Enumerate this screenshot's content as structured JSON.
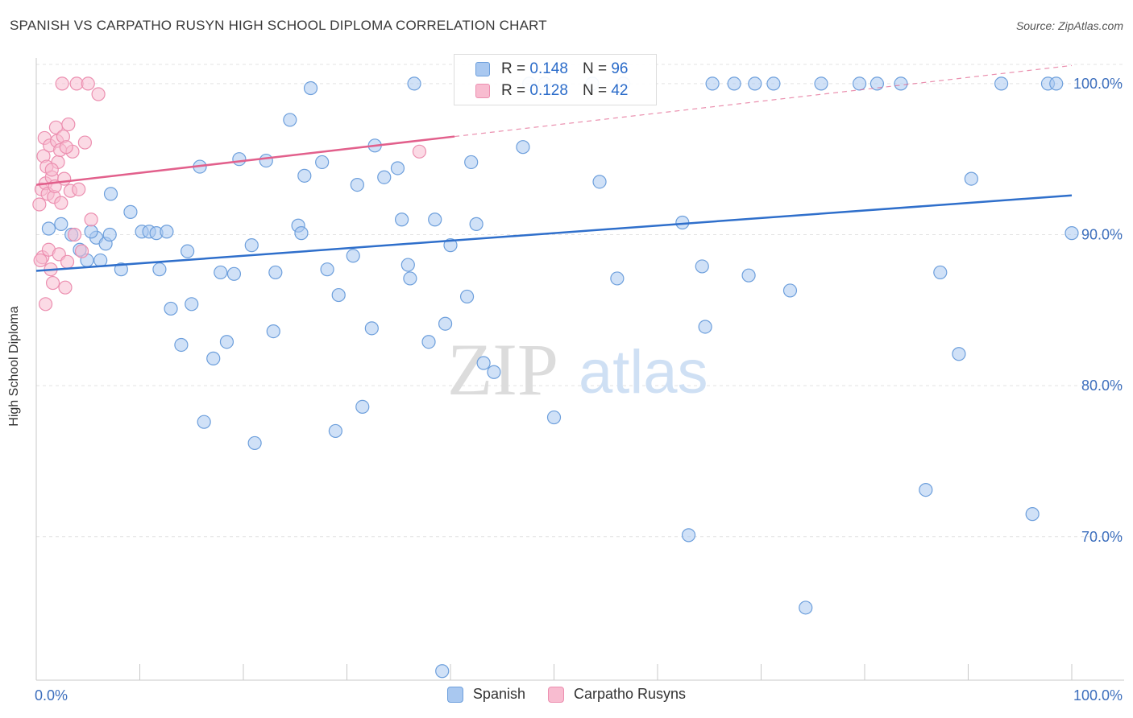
{
  "title": "SPANISH VS CARPATHO RUSYN HIGH SCHOOL DIPLOMA CORRELATION CHART",
  "source": "Source: ZipAtlas.com",
  "chart_data": {
    "type": "scatter",
    "title": "SPANISH VS CARPATHO RUSYN HIGH SCHOOL DIPLOMA CORRELATION CHART",
    "xlabel": "",
    "ylabel": "High School Diploma",
    "xlim": [
      0,
      100
    ],
    "ylim": [
      60.5,
      101.7
    ],
    "x_tick_labels": [
      "0.0%",
      "100.0%"
    ],
    "y_ticks": [
      70,
      80,
      90,
      100
    ],
    "y_tick_labels": [
      "70.0%",
      "80.0%",
      "90.0%",
      "100.0%"
    ],
    "grid": true,
    "watermark": {
      "part1": "ZIP",
      "part2": "atlas"
    },
    "legend": {
      "r_label": "R =",
      "n_label": "N =",
      "entries": [
        {
          "name": "Spanish",
          "r": "0.148",
          "n": "96"
        },
        {
          "name": "Carpatho Rusyns",
          "r": "0.128",
          "n": "42"
        }
      ]
    },
    "colors": {
      "spanish_fill": "#a9c8f0",
      "spanish_stroke": "#6d9fdc",
      "spanish_line": "#2f6fcb",
      "rusyn_fill": "#f8bcd0",
      "rusyn_stroke": "#ec8fb0",
      "rusyn_line": "#e2608c",
      "grid": "#e3e3e3",
      "tick_label": "#3d6fbd"
    },
    "series": [
      {
        "name": "Spanish",
        "trend": {
          "x": [
            0,
            100
          ],
          "y": [
            87.6,
            92.6
          ]
        },
        "points": [
          [
            1.2,
            90.4
          ],
          [
            2.4,
            90.7
          ],
          [
            3.4,
            90.0
          ],
          [
            4.2,
            89.0
          ],
          [
            4.9,
            88.3
          ],
          [
            6.2,
            88.3
          ],
          [
            5.8,
            89.8
          ],
          [
            5.3,
            90.2
          ],
          [
            6.7,
            89.4
          ],
          [
            7.1,
            90.0
          ],
          [
            7.2,
            92.7
          ],
          [
            8.2,
            87.7
          ],
          [
            9.1,
            91.5
          ],
          [
            10.2,
            90.2
          ],
          [
            10.9,
            90.2
          ],
          [
            11.6,
            90.1
          ],
          [
            11.9,
            87.7
          ],
          [
            12.6,
            90.2
          ],
          [
            13.0,
            85.1
          ],
          [
            14.0,
            82.7
          ],
          [
            14.6,
            88.9
          ],
          [
            15.0,
            85.4
          ],
          [
            15.8,
            94.5
          ],
          [
            16.2,
            77.6
          ],
          [
            17.1,
            81.8
          ],
          [
            17.8,
            87.5
          ],
          [
            18.4,
            82.9
          ],
          [
            19.1,
            87.4
          ],
          [
            19.6,
            95.0
          ],
          [
            20.8,
            89.3
          ],
          [
            21.1,
            76.2
          ],
          [
            22.2,
            94.9
          ],
          [
            22.9,
            83.6
          ],
          [
            23.1,
            87.5
          ],
          [
            24.5,
            97.6
          ],
          [
            25.3,
            90.6
          ],
          [
            25.6,
            90.1
          ],
          [
            25.9,
            93.9
          ],
          [
            26.5,
            99.7
          ],
          [
            27.6,
            94.8
          ],
          [
            28.1,
            87.7
          ],
          [
            28.9,
            77.0
          ],
          [
            29.2,
            86.0
          ],
          [
            30.6,
            88.6
          ],
          [
            31.0,
            93.3
          ],
          [
            31.5,
            78.6
          ],
          [
            32.4,
            83.8
          ],
          [
            32.7,
            95.9
          ],
          [
            33.6,
            93.8
          ],
          [
            34.9,
            94.4
          ],
          [
            35.3,
            91.0
          ],
          [
            35.9,
            88.0
          ],
          [
            36.1,
            87.1
          ],
          [
            36.5,
            100.0
          ],
          [
            37.9,
            82.9
          ],
          [
            38.5,
            91.0
          ],
          [
            39.2,
            61.1
          ],
          [
            39.5,
            84.1
          ],
          [
            40.0,
            89.3
          ],
          [
            41.6,
            85.9
          ],
          [
            42.0,
            94.8
          ],
          [
            42.5,
            90.7
          ],
          [
            43.2,
            81.5
          ],
          [
            44.2,
            80.9
          ],
          [
            47.0,
            95.8
          ],
          [
            47.6,
            100.0
          ],
          [
            49.1,
            100.0
          ],
          [
            50.0,
            77.9
          ],
          [
            53.7,
            100.0
          ],
          [
            54.4,
            93.5
          ],
          [
            56.1,
            87.1
          ],
          [
            56.7,
            100.0
          ],
          [
            62.4,
            90.8
          ],
          [
            63.0,
            70.1
          ],
          [
            64.3,
            87.9
          ],
          [
            64.6,
            83.9
          ],
          [
            65.3,
            100.0
          ],
          [
            67.4,
            100.0
          ],
          [
            68.8,
            87.3
          ],
          [
            69.4,
            100.0
          ],
          [
            71.2,
            100.0
          ],
          [
            72.8,
            86.3
          ],
          [
            74.3,
            65.3
          ],
          [
            75.8,
            100.0
          ],
          [
            79.5,
            100.0
          ],
          [
            81.2,
            100.0
          ],
          [
            83.5,
            100.0
          ],
          [
            85.9,
            73.1
          ],
          [
            87.3,
            87.5
          ],
          [
            89.1,
            82.1
          ],
          [
            90.3,
            93.7
          ],
          [
            93.2,
            100.0
          ],
          [
            96.2,
            71.5
          ],
          [
            97.7,
            100.0
          ],
          [
            98.5,
            100.0
          ],
          [
            100.0,
            90.1
          ]
        ]
      },
      {
        "name": "Carpatho Rusyns",
        "trend": {
          "x": [
            0,
            40.4
          ],
          "y": [
            93.3,
            96.5
          ]
        },
        "trend_extension": {
          "x": [
            40.4,
            100
          ],
          "y": [
            96.5,
            101.2
          ]
        },
        "points": [
          [
            0.3,
            92.0
          ],
          [
            0.5,
            93.0
          ],
          [
            0.6,
            88.5
          ],
          [
            0.7,
            95.2
          ],
          [
            0.8,
            96.4
          ],
          [
            0.9,
            93.4
          ],
          [
            1.0,
            94.5
          ],
          [
            1.1,
            92.7
          ],
          [
            1.2,
            89.0
          ],
          [
            1.3,
            95.9
          ],
          [
            1.4,
            87.7
          ],
          [
            1.5,
            93.8
          ],
          [
            1.6,
            86.8
          ],
          [
            1.7,
            92.5
          ],
          [
            1.8,
            93.2
          ],
          [
            1.9,
            97.1
          ],
          [
            2.0,
            96.2
          ],
          [
            2.1,
            94.8
          ],
          [
            2.2,
            88.7
          ],
          [
            2.3,
            95.6
          ],
          [
            2.4,
            92.1
          ],
          [
            2.5,
            100.0
          ],
          [
            2.6,
            96.5
          ],
          [
            2.7,
            93.7
          ],
          [
            2.8,
            86.5
          ],
          [
            3.0,
            88.2
          ],
          [
            3.1,
            97.3
          ],
          [
            3.3,
            92.9
          ],
          [
            3.5,
            95.5
          ],
          [
            3.7,
            90.0
          ],
          [
            3.9,
            100.0
          ],
          [
            4.1,
            93.0
          ],
          [
            4.4,
            88.9
          ],
          [
            4.7,
            96.1
          ],
          [
            5.0,
            100.0
          ],
          [
            5.3,
            91.0
          ],
          [
            6.0,
            99.3
          ],
          [
            0.4,
            88.3
          ],
          [
            0.9,
            85.4
          ],
          [
            1.5,
            94.3
          ],
          [
            2.9,
            95.8
          ],
          [
            37.0,
            95.5
          ]
        ]
      }
    ]
  }
}
